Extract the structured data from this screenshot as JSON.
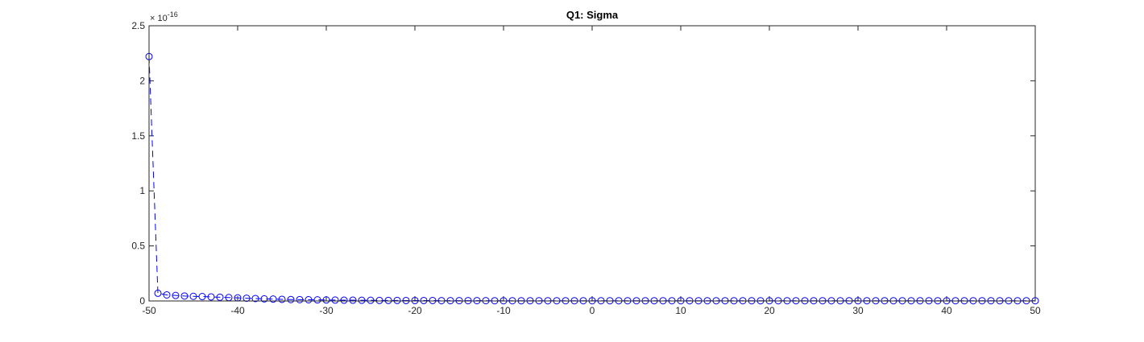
{
  "chart_data": {
    "type": "scatter",
    "title": "Q1: Sigma",
    "xlabel": "",
    "ylabel": "",
    "xlim": [
      -50,
      50
    ],
    "ylim": [
      0,
      2.5
    ],
    "y_exponent_label": "× 10",
    "y_exponent_power": "-16",
    "x_ticks": [
      -50,
      -40,
      -30,
      -20,
      -10,
      0,
      10,
      20,
      30,
      40,
      50
    ],
    "x_tick_labels": [
      "-50",
      "-40",
      "-30",
      "-20",
      "-10",
      "0",
      "10",
      "20",
      "30",
      "40",
      "50"
    ],
    "y_ticks": [
      0,
      0.5,
      1,
      1.5,
      2,
      2.5
    ],
    "y_tick_labels": [
      "0",
      "0.5",
      "1",
      "1.5",
      "2",
      "2.5"
    ],
    "grid": false,
    "marker": "circle",
    "line_style": "dashed",
    "series": [
      {
        "color": "#0000ff",
        "x": [
          -50,
          -49,
          -48,
          -47,
          -46,
          -45,
          -44,
          -43,
          -42,
          -41,
          -40,
          -39,
          -38,
          -37,
          -36,
          -35,
          -34,
          -33,
          -32,
          -31,
          -30,
          -29,
          -28,
          -27,
          -26,
          -25,
          -24,
          -23,
          -22,
          -21,
          -20,
          -19,
          -18,
          -17,
          -16,
          -15,
          -14,
          -13,
          -12,
          -11,
          -10,
          -9,
          -8,
          -7,
          -6,
          -5,
          -4,
          -3,
          -2,
          -1,
          0,
          1,
          2,
          3,
          4,
          5,
          6,
          7,
          8,
          9,
          10,
          11,
          12,
          13,
          14,
          15,
          16,
          17,
          18,
          19,
          20,
          21,
          22,
          23,
          24,
          25,
          26,
          27,
          28,
          29,
          30,
          31,
          32,
          33,
          34,
          35,
          36,
          37,
          38,
          39,
          40,
          41,
          42,
          43,
          44,
          45,
          46,
          47,
          48,
          49,
          50
        ],
        "y": [
          2.22,
          0.07,
          0.055,
          0.05,
          0.045,
          0.042,
          0.04,
          0.037,
          0.034,
          0.031,
          0.028,
          0.025,
          0.022,
          0.019,
          0.017,
          0.015,
          0.013,
          0.012,
          0.011,
          0.01,
          0.009,
          0.008,
          0.007,
          0.007,
          0.006,
          0.006,
          0.005,
          0.005,
          0.005,
          0.004,
          0.004,
          0.004,
          0.004,
          0.003,
          0.003,
          0.003,
          0.003,
          0.003,
          0.003,
          0.002,
          0.002,
          0.002,
          0.002,
          0.002,
          0.002,
          0.002,
          0.002,
          0.002,
          0.002,
          0.002,
          0.002,
          0.002,
          0.002,
          0.002,
          0.002,
          0.002,
          0.002,
          0.002,
          0.002,
          0.002,
          0.002,
          0.002,
          0.002,
          0.002,
          0.002,
          0.002,
          0.002,
          0.002,
          0.002,
          0.002,
          0.002,
          0.002,
          0.002,
          0.002,
          0.002,
          0.002,
          0.002,
          0.002,
          0.002,
          0.002,
          0.002,
          0.002,
          0.002,
          0.002,
          0.002,
          0.002,
          0.002,
          0.002,
          0.002,
          0.002,
          0.002,
          0.002,
          0.002,
          0.002,
          0.002,
          0.002,
          0.002,
          0.002,
          0.002,
          0.002,
          0.002
        ]
      }
    ]
  }
}
